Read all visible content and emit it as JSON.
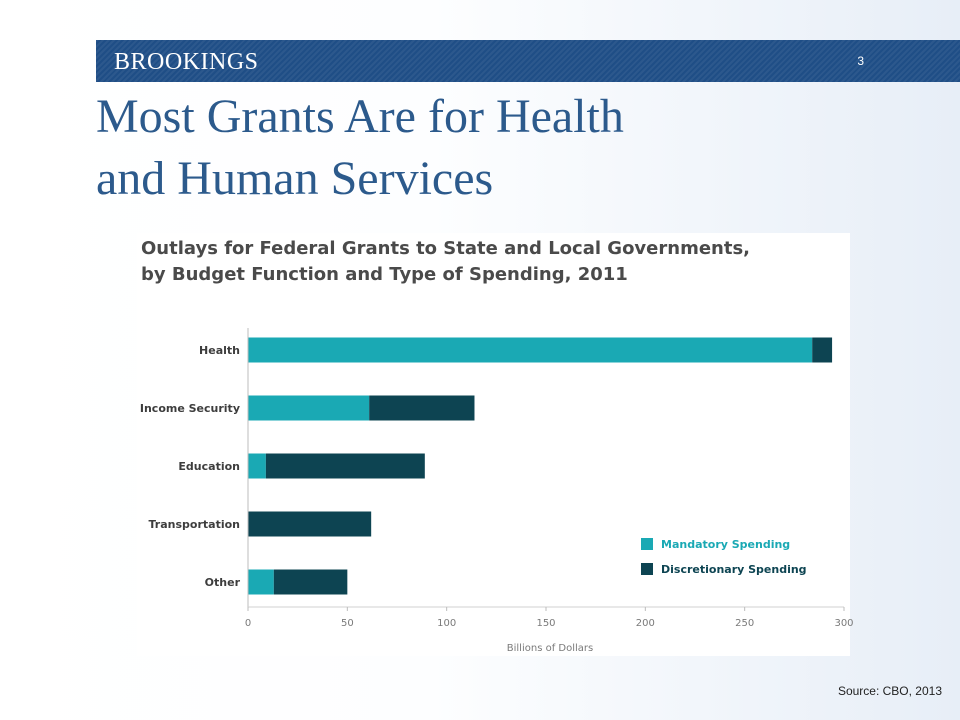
{
  "header": {
    "brand": "BROOKINGS",
    "slide_number": "3"
  },
  "slide": {
    "title_line1": "Most Grants Are for Health",
    "title_line2": "and Human Services"
  },
  "source": "Source: CBO, 2013",
  "colors": {
    "header_bar": "#1f4e86",
    "title": "#2c5a8c",
    "mandatory": "#1aa9b4",
    "discretionary": "#0d4452"
  },
  "chart_data": {
    "type": "bar",
    "orientation": "horizontal",
    "stacked": true,
    "title_lines": [
      "Outlays for Federal Grants to State and Local Governments,",
      "by Budget Function and Type of Spending, 2011"
    ],
    "categories": [
      "Health",
      "Income Security",
      "Education",
      "Transportation",
      "Other"
    ],
    "series": [
      {
        "name": "Mandatory Spending",
        "color": "#1aa9b4",
        "values": [
          284,
          61,
          9,
          0,
          13
        ]
      },
      {
        "name": "Discretionary Spending",
        "color": "#0d4452",
        "values": [
          10,
          53,
          80,
          62,
          37
        ]
      }
    ],
    "xlabel": "Billions of Dollars",
    "ylabel": "",
    "xlim": [
      0,
      300
    ],
    "x_ticks": [
      0,
      50,
      100,
      150,
      200,
      250,
      300
    ],
    "grid": false,
    "legend_position": "bottom-right"
  }
}
